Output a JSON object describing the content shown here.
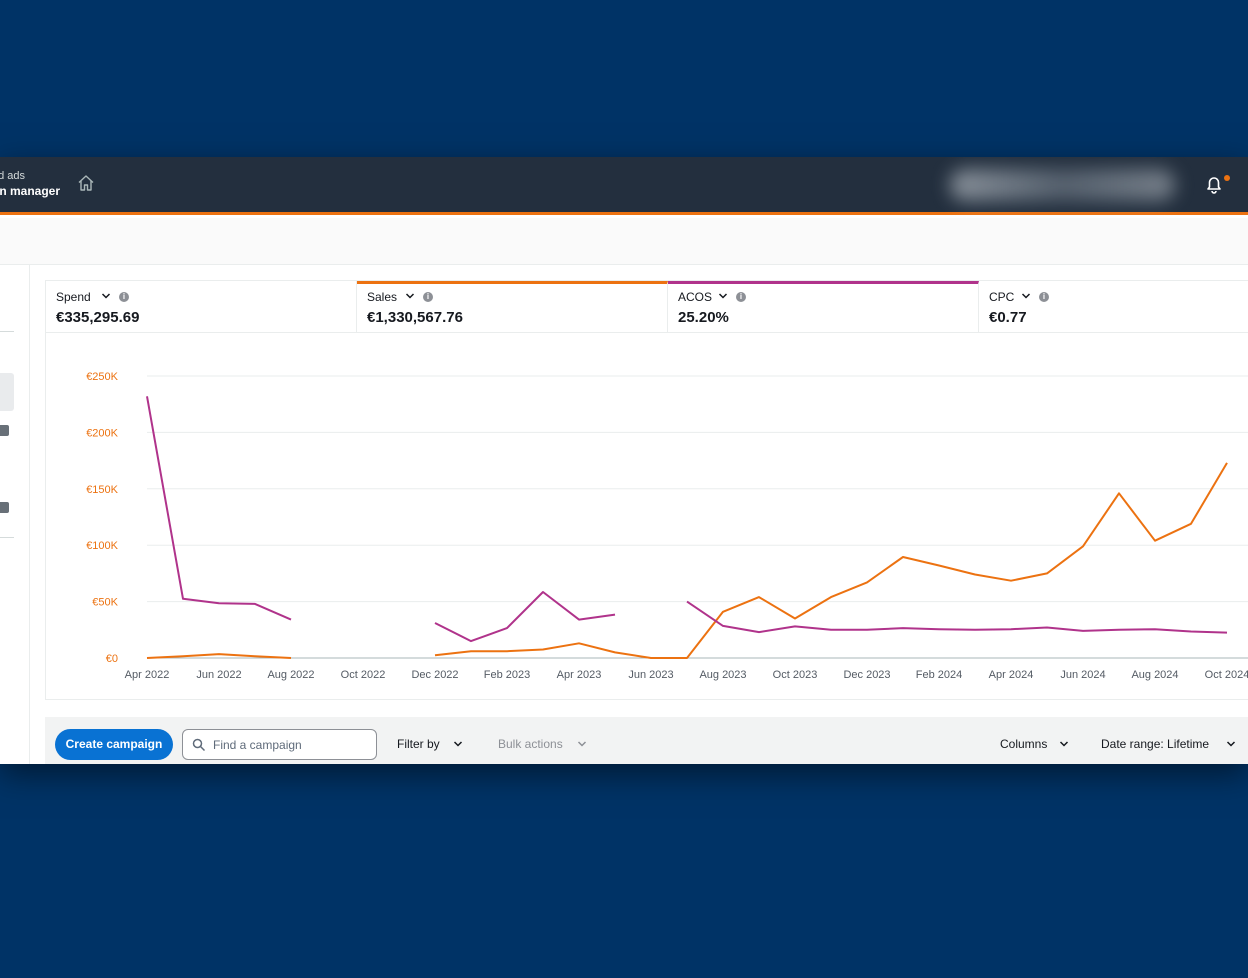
{
  "header": {
    "brand_line1": "ed ads",
    "brand_line2": "gn manager"
  },
  "metrics": [
    {
      "label": "Spend",
      "value": "€335,295.69",
      "selected_color": null
    },
    {
      "label": "Sales",
      "value": "€1,330,567.76",
      "selected_color": "#ec7211"
    },
    {
      "label": "ACOS",
      "value": "25.20%",
      "selected_color": "#b0338b"
    },
    {
      "label": "CPC",
      "value": "€0.77",
      "selected_color": null
    }
  ],
  "toolbar": {
    "create_label": "Create campaign",
    "search_placeholder": "Find a campaign",
    "filter_label": "Filter by",
    "bulk_label": "Bulk actions",
    "columns_label": "Columns",
    "date_range_label": "Date range: Lifetime"
  },
  "colors": {
    "sales": "#ec7211",
    "acos": "#b0338b",
    "header_bg": "#232f3e",
    "primary": "#0972d3"
  },
  "chart_data": {
    "type": "line",
    "title": "",
    "xlabel": "",
    "ylabel": "",
    "ylim": [
      0,
      250000
    ],
    "yticks": [
      "€0",
      "€50K",
      "€100K",
      "€150K",
      "€200K",
      "€250K"
    ],
    "x_tick_labels": [
      "Apr 2022",
      "Jun 2022",
      "Aug 2022",
      "Oct 2022",
      "Dec 2022",
      "Feb 2023",
      "Apr 2023",
      "Jun 2023",
      "Aug 2023",
      "Oct 2023",
      "Dec 2023",
      "Feb 2024",
      "Apr 2024",
      "Jun 2024",
      "Aug 2024",
      "Oct 2024"
    ],
    "x": [
      "Apr 2022",
      "May 2022",
      "Jun 2022",
      "Jul 2022",
      "Aug 2022",
      "Sep 2022",
      "Oct 2022",
      "Nov 2022",
      "Dec 2022",
      "Jan 2023",
      "Feb 2023",
      "Mar 2023",
      "Apr 2023",
      "May 2023",
      "Jun 2023",
      "Jul 2023",
      "Aug 2023",
      "Sep 2023",
      "Oct 2023",
      "Nov 2023",
      "Dec 2023",
      "Jan 2024",
      "Feb 2024",
      "Mar 2024",
      "Apr 2024",
      "May 2024",
      "Jun 2024",
      "Jul 2024",
      "Aug 2024",
      "Sep 2024",
      "Oct 2024"
    ],
    "grid": true,
    "series": [
      {
        "name": "Sales",
        "color": "#ec7211",
        "values": [
          0,
          1500,
          3500,
          1500,
          0,
          null,
          null,
          null,
          2500,
          6000,
          6000,
          7500,
          13000,
          5000,
          0,
          0,
          41000,
          54000,
          35000,
          54000,
          67000,
          89500,
          82000,
          74000,
          68500,
          75000,
          99000,
          146000,
          104000,
          119000,
          173000
        ]
      },
      {
        "name": "ACOS",
        "color": "#b0338b",
        "values": [
          232000,
          52500,
          48500,
          48000,
          34000,
          null,
          null,
          null,
          31000,
          15000,
          26500,
          58500,
          34000,
          38500,
          null,
          50000,
          28500,
          23000,
          28000,
          25000,
          25000,
          26500,
          25500,
          25000,
          25500,
          27000,
          24000,
          25000,
          25500,
          23500,
          22500
        ]
      }
    ]
  }
}
